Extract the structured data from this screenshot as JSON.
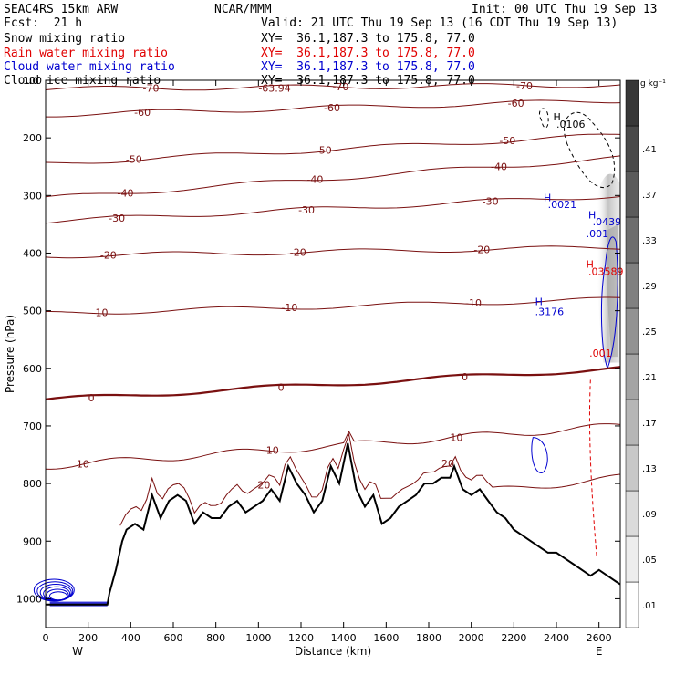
{
  "header": {
    "model": "SEAC4RS 15km ARW",
    "org": "NCAR/MMM",
    "init": "Init: 00 UTC Thu 19 Sep 13",
    "fcst": "Fcst:  21 h",
    "valid": "Valid: 21 UTC Thu 19 Sep 13 (16 CDT Thu 19 Sep 13)",
    "fields": [
      {
        "name": "Snow mixing ratio",
        "xy": "XY=  36.1,187.3 to 175.8, 77.0",
        "color": "#000000"
      },
      {
        "name": "Rain water mixing ratio",
        "xy": "XY=  36.1,187.3 to 175.8, 77.0",
        "color": "#e00000"
      },
      {
        "name": "Cloud water mixing ratio",
        "xy": "XY=  36.1,187.3 to 175.8, 77.0",
        "color": "#0000d0"
      },
      {
        "name": "Cloud ice mixing ratio",
        "xy": "XY=  36.1,187.3 to 175.8, 77.0",
        "color": "#000000"
      }
    ]
  },
  "chart_data": {
    "type": "contour-cross-section",
    "xlabel": "Distance (km)",
    "ylabel": "Pressure (hPa)",
    "xlim": [
      0,
      2700
    ],
    "ylim": [
      1050,
      100
    ],
    "x_ticks": [
      0,
      200,
      400,
      600,
      800,
      1000,
      1200,
      1400,
      1600,
      1800,
      2000,
      2200,
      2400,
      2600
    ],
    "y_ticks": [
      100,
      200,
      300,
      400,
      500,
      600,
      700,
      800,
      900,
      1000
    ],
    "x_tick_labels": [
      "0",
      "200",
      "400",
      "600",
      "800",
      "1000",
      "1200",
      "1400",
      "1600",
      "1800",
      "2000",
      "2200",
      "2400",
      "2600"
    ],
    "y_tick_labels": [
      "100",
      "200",
      "300",
      "400",
      "500",
      "600",
      "700",
      "800",
      "900",
      "1000"
    ],
    "end_labels": {
      "left": "W",
      "right": "E"
    },
    "colorbar": {
      "unit": "g kg⁻¹",
      "labels": [
        ".01",
        ".05",
        ".09",
        ".13",
        ".17",
        ".21",
        ".25",
        ".29",
        ".33",
        ".37",
        ".41"
      ],
      "levels": [
        0.01,
        0.05,
        0.09,
        0.13,
        0.17,
        0.21,
        0.25,
        0.29,
        0.33,
        0.37,
        0.41,
        0.45
      ]
    },
    "temperature_isotherms_C": [
      20,
      10,
      0,
      -10,
      -20,
      -30,
      -40,
      -50,
      -60,
      -70
    ],
    "terrain_surface_hPa": [
      [
        0,
        1010
      ],
      [
        290,
        1010
      ],
      [
        300,
        990
      ],
      [
        330,
        950
      ],
      [
        360,
        900
      ],
      [
        380,
        880
      ],
      [
        420,
        870
      ],
      [
        460,
        880
      ],
      [
        500,
        820
      ],
      [
        540,
        860
      ],
      [
        580,
        830
      ],
      [
        620,
        820
      ],
      [
        660,
        830
      ],
      [
        700,
        870
      ],
      [
        740,
        850
      ],
      [
        780,
        860
      ],
      [
        820,
        860
      ],
      [
        860,
        840
      ],
      [
        900,
        830
      ],
      [
        940,
        850
      ],
      [
        980,
        840
      ],
      [
        1020,
        830
      ],
      [
        1060,
        810
      ],
      [
        1100,
        830
      ],
      [
        1140,
        770
      ],
      [
        1180,
        800
      ],
      [
        1220,
        820
      ],
      [
        1260,
        850
      ],
      [
        1300,
        830
      ],
      [
        1340,
        770
      ],
      [
        1380,
        800
      ],
      [
        1420,
        730
      ],
      [
        1460,
        810
      ],
      [
        1500,
        840
      ],
      [
        1540,
        820
      ],
      [
        1580,
        870
      ],
      [
        1620,
        860
      ],
      [
        1660,
        840
      ],
      [
        1700,
        830
      ],
      [
        1740,
        820
      ],
      [
        1780,
        800
      ],
      [
        1820,
        800
      ],
      [
        1860,
        790
      ],
      [
        1900,
        790
      ],
      [
        1920,
        770
      ],
      [
        1960,
        810
      ],
      [
        2000,
        820
      ],
      [
        2040,
        810
      ],
      [
        2080,
        830
      ],
      [
        2120,
        850
      ],
      [
        2160,
        860
      ],
      [
        2200,
        880
      ],
      [
        2240,
        890
      ],
      [
        2280,
        900
      ],
      [
        2320,
        910
      ],
      [
        2360,
        920
      ],
      [
        2400,
        920
      ],
      [
        2440,
        930
      ],
      [
        2480,
        940
      ],
      [
        2520,
        950
      ],
      [
        2560,
        960
      ],
      [
        2600,
        950
      ],
      [
        2640,
        960
      ],
      [
        2680,
        970
      ],
      [
        2700,
        975
      ]
    ],
    "annotations": [
      {
        "text": "-63.94",
        "x": 1000,
        "p": 120,
        "color": "#7a1010"
      },
      {
        "text": "H",
        "x": 2385,
        "p": 170,
        "color": "#000000"
      },
      {
        "text": ".0106",
        "x": 2400,
        "p": 182,
        "color": "#000000"
      },
      {
        "text": "H",
        "x": 2340,
        "p": 310,
        "color": "#0000d0"
      },
      {
        "text": ".0021",
        "x": 2360,
        "p": 322,
        "color": "#0000d0"
      },
      {
        "text": "H",
        "x": 2550,
        "p": 340,
        "color": "#0000d0"
      },
      {
        "text": ".0439",
        "x": 2570,
        "p": 352,
        "color": "#0000d0"
      },
      {
        "text": ".001",
        "x": 2540,
        "p": 372,
        "color": "#0000d0"
      },
      {
        "text": "H",
        "x": 2540,
        "p": 425,
        "color": "#e00000"
      },
      {
        "text": ".03589",
        "x": 2550,
        "p": 438,
        "color": "#e00000"
      },
      {
        "text": "H",
        "x": 2300,
        "p": 490,
        "color": "#0000d0"
      },
      {
        "text": ".3176",
        "x": 2300,
        "p": 508,
        "color": "#0000d0"
      },
      {
        "text": ".001",
        "x": 2555,
        "p": 580,
        "color": "#e00000"
      }
    ]
  }
}
